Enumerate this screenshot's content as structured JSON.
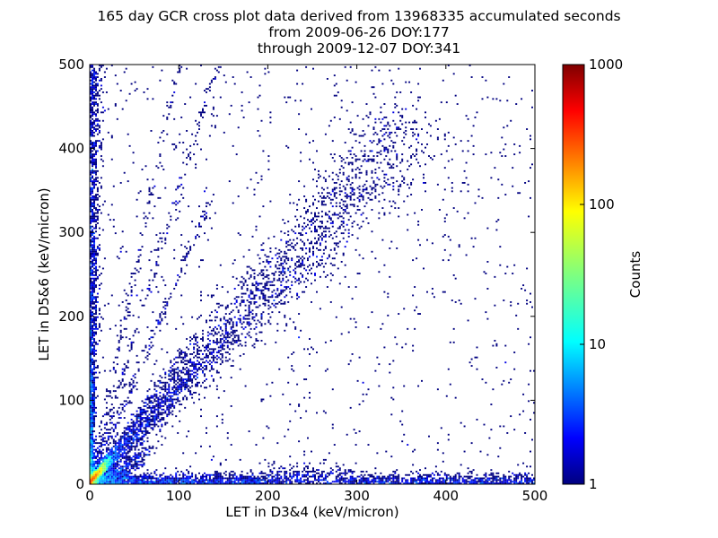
{
  "chart_data": {
    "type": "heatmap",
    "title_lines": [
      "165 day GCR cross plot data derived from 13968335 accumulated seconds",
      "from 2009-06-26 DOY:177",
      "through 2009-12-07 DOY:341"
    ],
    "xlabel": "LET in D3&4 (keV/micron)",
    "ylabel": "LET in D5&6 (keV/micron)",
    "xlim": [
      0,
      500
    ],
    "ylim": [
      0,
      500
    ],
    "x_ticks": [
      0,
      100,
      200,
      300,
      400,
      500
    ],
    "y_ticks": [
      0,
      100,
      200,
      300,
      400,
      500
    ],
    "x_tick_labels": [
      "0",
      "100",
      "200",
      "300",
      "400",
      "500"
    ],
    "y_tick_labels": [
      "0",
      "100",
      "200",
      "300",
      "400",
      "500"
    ],
    "colorbar": {
      "label": "Counts",
      "scale": "log",
      "range": [
        1,
        1000
      ],
      "ticks": [
        1,
        10,
        100,
        1000
      ],
      "tick_labels": [
        "1",
        "10",
        "100",
        "1000"
      ],
      "colormap": "jet"
    },
    "features": [
      {
        "name": "diagonal band",
        "from": [
          5,
          5
        ],
        "to": [
          360,
          420
        ]
      },
      {
        "name": "vertical band near x=0",
        "x": 2,
        "y_range": [
          0,
          500
        ]
      },
      {
        "name": "horizontal band near y=0",
        "y": 5,
        "x_range": [
          0,
          500
        ]
      },
      {
        "name": "low-LET core",
        "x": [
          0,
          30
        ],
        "y": [
          0,
          30
        ],
        "max_counts": 1000
      }
    ]
  }
}
